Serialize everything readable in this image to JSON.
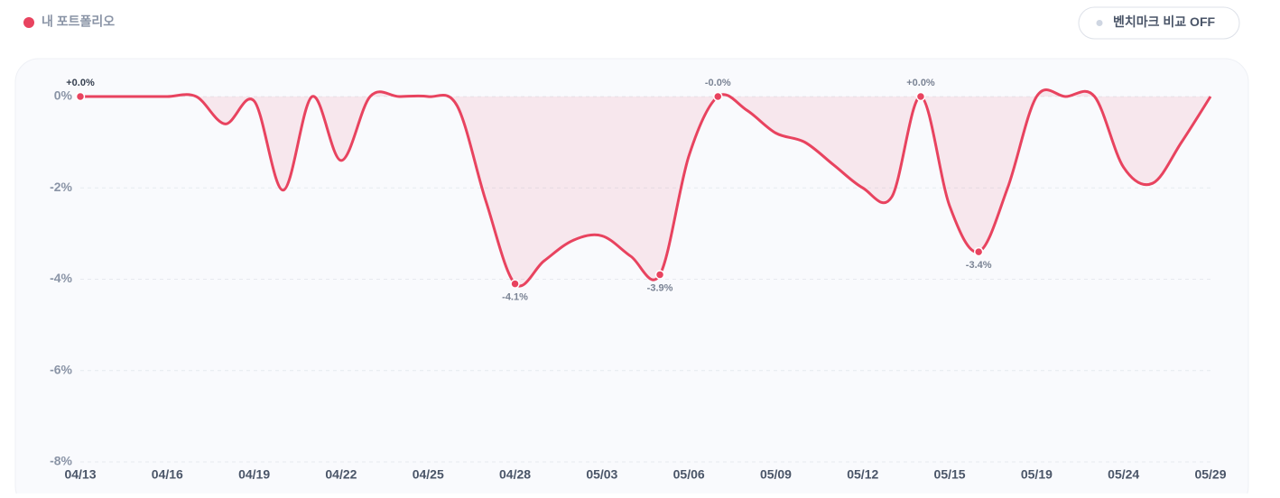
{
  "chart_data": {
    "type": "line",
    "categories": [
      "04/13",
      null,
      null,
      "04/16",
      null,
      null,
      "04/19",
      null,
      null,
      "04/22",
      null,
      null,
      "04/25",
      null,
      null,
      "04/28",
      null,
      null,
      "05/03",
      null,
      null,
      "05/06",
      null,
      null,
      "05/09",
      null,
      null,
      "05/12",
      null,
      null,
      "05/15",
      null,
      null,
      "05/19",
      null,
      null,
      "05/24",
      null,
      null,
      "05/29"
    ],
    "series": [
      {
        "name": "내 포트폴리오",
        "color": "#e8435f",
        "values": [
          0,
          0,
          0,
          0,
          0,
          -0.6,
          -0.1,
          -2.05,
          0,
          -1.4,
          0,
          0,
          0,
          -0.2,
          -2.3,
          -4.1,
          -3.6,
          -3.15,
          -3.05,
          -3.5,
          -3.9,
          -1.3,
          0,
          -0.3,
          -0.8,
          -1.0,
          -1.5,
          -2.0,
          -2.2,
          0,
          -2.4,
          -3.4,
          -2.0,
          0,
          0,
          0,
          -1.55,
          -1.9,
          -1.0,
          0
        ],
        "value_labels": [
          "+0.0%",
          null,
          null,
          null,
          null,
          null,
          null,
          null,
          null,
          null,
          null,
          null,
          null,
          null,
          null,
          "-4.1%",
          null,
          null,
          null,
          null,
          "-3.9%",
          null,
          "-0.0%",
          null,
          null,
          null,
          null,
          null,
          null,
          "+0.0%",
          null,
          "-3.4%",
          null,
          null,
          null,
          null,
          null,
          null,
          null,
          null
        ]
      }
    ],
    "ylim": [
      -8,
      0
    ],
    "yticks": [
      {
        "value": 0,
        "label": "0%"
      },
      {
        "value": -2,
        "label": "-2%"
      },
      {
        "value": -4,
        "label": "-4%"
      },
      {
        "value": -6,
        "label": "-6%"
      },
      {
        "value": -8,
        "label": "-8%"
      }
    ],
    "grid": true
  },
  "controls": {
    "benchmark_toggle": "벤치마크 비교 OFF"
  }
}
